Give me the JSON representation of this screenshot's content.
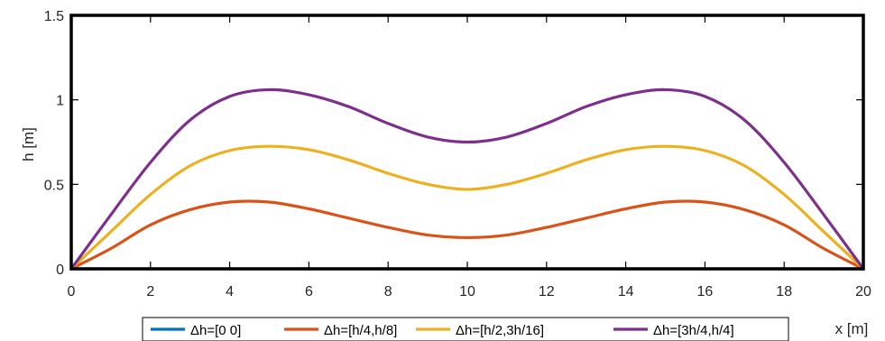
{
  "chart_data": {
    "type": "line",
    "title": "",
    "xlabel": "x [m]",
    "ylabel": "h [m]",
    "xlim": [
      0,
      20
    ],
    "ylim": [
      0,
      1.5
    ],
    "xticks": [
      0,
      2,
      4,
      6,
      8,
      10,
      12,
      14,
      16,
      18,
      20
    ],
    "yticks": [
      0,
      0.5,
      1,
      1.5
    ],
    "xtick_labels": [
      "0",
      "2",
      "4",
      "6",
      "8",
      "10",
      "12",
      "14",
      "16",
      "18",
      "20"
    ],
    "ytick_labels": [
      "0",
      "0.5",
      "1",
      "1.5"
    ],
    "grid": false,
    "legend_position": "bottom, horizontal",
    "x": [
      0,
      1,
      2,
      3,
      4,
      5,
      6,
      7,
      8,
      9,
      10,
      11,
      12,
      13,
      14,
      15,
      16,
      17,
      18,
      19,
      20
    ],
    "series": [
      {
        "name": "Δh=[0 0]",
        "color": "#0072BD",
        "values": [
          0,
          0,
          0,
          0,
          0,
          0,
          0,
          0,
          0,
          0,
          0,
          0,
          0,
          0,
          0,
          0,
          0,
          0,
          0,
          0,
          0
        ]
      },
      {
        "name": "Δh=[h/4,h/8]",
        "color": "#D95319",
        "values": [
          0,
          0.12,
          0.26,
          0.35,
          0.395,
          0.395,
          0.355,
          0.3,
          0.245,
          0.2,
          0.185,
          0.2,
          0.245,
          0.3,
          0.355,
          0.395,
          0.395,
          0.35,
          0.26,
          0.12,
          0
        ]
      },
      {
        "name": "Δh=[h/2,3h/16]",
        "color": "#EDB120",
        "values": [
          0,
          0.22,
          0.44,
          0.61,
          0.7,
          0.725,
          0.705,
          0.645,
          0.565,
          0.5,
          0.47,
          0.5,
          0.565,
          0.645,
          0.705,
          0.725,
          0.7,
          0.61,
          0.44,
          0.22,
          0
        ]
      },
      {
        "name": "Δh=[3h/4,h/4]",
        "color": "#7E2F8E",
        "values": [
          0,
          0.32,
          0.63,
          0.88,
          1.02,
          1.06,
          1.03,
          0.96,
          0.86,
          0.78,
          0.75,
          0.78,
          0.86,
          0.96,
          1.03,
          1.06,
          1.02,
          0.88,
          0.63,
          0.32,
          0
        ]
      }
    ]
  }
}
